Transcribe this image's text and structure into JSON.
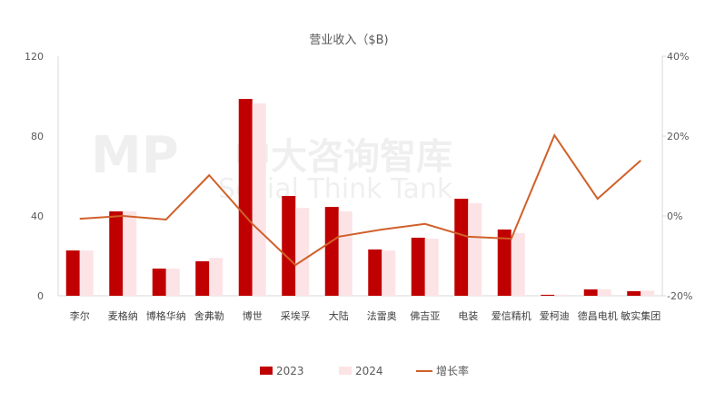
{
  "chart_data": {
    "type": "bar",
    "title": "营业收入（$B)",
    "categories": [
      "李尔",
      "麦格纳",
      "博格华纳",
      "舍弗勒",
      "博世",
      "采埃孚",
      "大陆",
      "法雷奥",
      "佛吉亚",
      "电装",
      "爱信精机",
      "爱柯迪",
      "德昌电机",
      "敏实集团"
    ],
    "series": [
      {
        "name": "2023",
        "type": "bar",
        "axis": "left",
        "color": "#C00000",
        "values": [
          22.7,
          42.3,
          13.6,
          17.3,
          98.6,
          50.0,
          44.5,
          23.2,
          29.1,
          48.6,
          33.2,
          0.5,
          3.2,
          2.3
        ]
      },
      {
        "name": "2024",
        "type": "bar",
        "axis": "left",
        "color": "#FCE4E6",
        "values": [
          22.7,
          42.3,
          13.6,
          19.0,
          96.4,
          44.0,
          42.3,
          22.7,
          28.6,
          46.4,
          31.4,
          0.6,
          3.2,
          2.6
        ]
      },
      {
        "name": "增长率",
        "type": "line",
        "axis": "right",
        "color": "#D0602A",
        "values": [
          -0.7,
          0.0,
          -0.9,
          10.2,
          -2.0,
          -12.3,
          -5.2,
          -3.4,
          -2.0,
          -5.2,
          -5.7,
          20.2,
          4.3,
          13.9
        ]
      }
    ],
    "y_left": {
      "min": 0,
      "max": 120,
      "ticks": [
        0,
        40,
        80,
        120
      ]
    },
    "y_right": {
      "min": -20,
      "max": 40,
      "ticks": [
        -20,
        0,
        20,
        40
      ],
      "unit": "%"
    },
    "grid": false,
    "legend": "bottom"
  },
  "watermark": {
    "logo": "MP",
    "cn": "中大咨询智库",
    "en": "Social Think Tank"
  }
}
